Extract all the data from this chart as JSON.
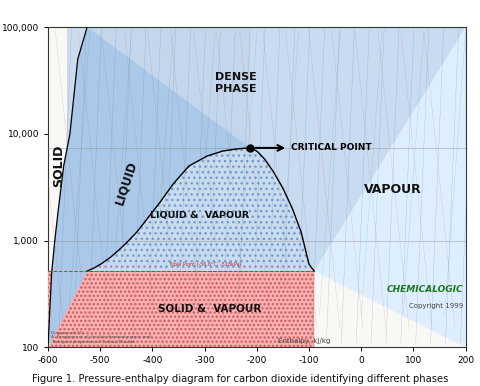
{
  "title": "Figure 1. Pressure-enthalpy diagram for carbon dioxide identifying different phases",
  "xlim": [
    -600,
    200
  ],
  "ylim_log": [
    100,
    100000
  ],
  "yticks": [
    100,
    1000,
    10000,
    100000
  ],
  "ytick_labels": [
    "100",
    "1,000",
    "10,000",
    "100,000"
  ],
  "xticks": [
    -600,
    -500,
    -400,
    -300,
    -200,
    -100,
    0,
    100,
    200
  ],
  "critical_point_x": -213,
  "critical_point_y": 7377,
  "triple_pressure": 518,
  "solid_boundary_x": [
    -600,
    -597,
    -593,
    -587,
    -580,
    -570,
    -558,
    -543,
    -525
  ],
  "solid_boundary_y": [
    100,
    200,
    500,
    1000,
    2000,
    5000,
    10000,
    50000,
    100000
  ],
  "dome_left_x": [
    -525,
    -510,
    -495,
    -480,
    -465,
    -450,
    -430,
    -410,
    -385,
    -360,
    -330,
    -295,
    -265,
    -240,
    -220,
    -213
  ],
  "dome_left_y": [
    518,
    560,
    620,
    700,
    810,
    950,
    1200,
    1600,
    2300,
    3400,
    5000,
    6200,
    6900,
    7200,
    7350,
    7377
  ],
  "dome_right_x": [
    -213,
    -200,
    -185,
    -168,
    -150,
    -132,
    -115,
    -100,
    -90
  ],
  "dome_right_y": [
    7377,
    6900,
    5800,
    4400,
    3100,
    2000,
    1200,
    600,
    518
  ],
  "solid_vapour_right_x": -90,
  "chemicalogic_color": "#1a7a1a"
}
